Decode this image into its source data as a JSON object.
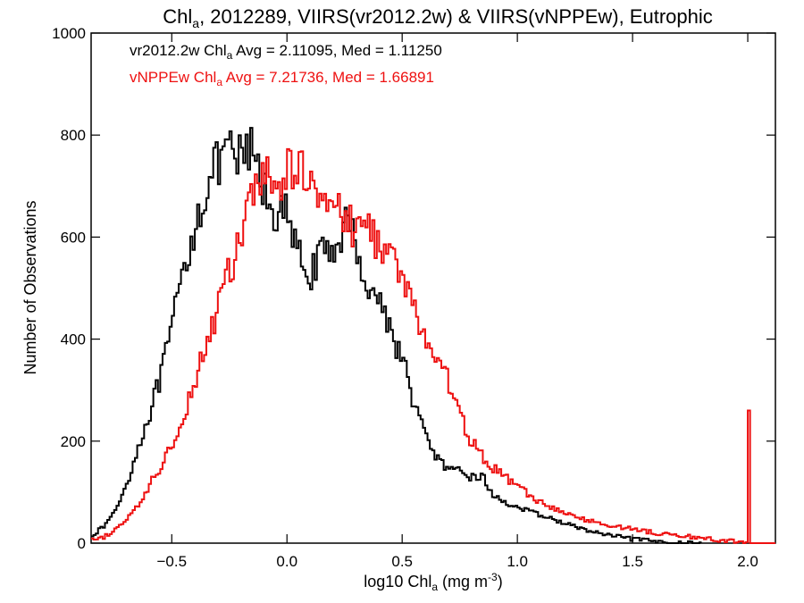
{
  "chart_data": {
    "type": "line",
    "title_main": "Chl",
    "title_sub": "a",
    "title_rest": ", 2012289, VIIRS(vr2012.2w) & VIIRS(vNPPEw), Eutrophic",
    "xlabel_pre": "log10 Chl",
    "xlabel_sub": "a",
    "xlabel_post": " (mg m",
    "xlabel_sup": "-3",
    "xlabel_end": ")",
    "ylabel": "Number of Observations",
    "xlim": [
      -0.85,
      2.12
    ],
    "ylim": [
      0,
      1000
    ],
    "xticks": [
      -0.5,
      0.0,
      0.5,
      1.0,
      1.5,
      2.0
    ],
    "xtick_labels": [
      "−0.5",
      "0.0",
      "0.5",
      "1.0",
      "1.5",
      "2.0"
    ],
    "yticks": [
      0,
      200,
      400,
      600,
      800,
      1000
    ],
    "ytick_labels": [
      "0",
      "200",
      "400",
      "600",
      "800",
      "1000"
    ],
    "stats": [
      {
        "pre": "vr2012.2w Chl",
        "sub": "a",
        "post": " Avg = 2.11095, Med = 1.11250",
        "color": "#000000"
      },
      {
        "pre": "vNPPEw Chl",
        "sub": "a",
        "post": " Avg = 7.21736, Med = 1.66891",
        "color": "#ee1111"
      }
    ],
    "series": [
      {
        "color": "#000000",
        "x": [
          -0.85,
          -0.8,
          -0.75,
          -0.7,
          -0.65,
          -0.6,
          -0.55,
          -0.5,
          -0.45,
          -0.4,
          -0.35,
          -0.3,
          -0.25,
          -0.2,
          -0.15,
          -0.1,
          -0.05,
          0.0,
          0.05,
          0.1,
          0.15,
          0.2,
          0.25,
          0.3,
          0.35,
          0.4,
          0.45,
          0.5,
          0.55,
          0.6,
          0.65,
          0.7,
          0.75,
          0.8,
          0.85,
          0.9,
          0.95,
          1.0,
          1.1,
          1.2,
          1.3,
          1.4,
          1.5,
          1.6,
          1.7,
          1.8
        ],
        "y": [
          15,
          30,
          60,
          110,
          180,
          250,
          320,
          420,
          530,
          620,
          700,
          740,
          760,
          750,
          770,
          690,
          650,
          640,
          560,
          530,
          560,
          570,
          630,
          590,
          500,
          480,
          420,
          360,
          280,
          210,
          170,
          140,
          140,
          130,
          130,
          90,
          80,
          70,
          55,
          40,
          25,
          15,
          8,
          3,
          0,
          0
        ]
      },
      {
        "color": "#ee1111",
        "x": [
          -0.85,
          -0.8,
          -0.75,
          -0.7,
          -0.65,
          -0.6,
          -0.55,
          -0.5,
          -0.45,
          -0.4,
          -0.35,
          -0.3,
          -0.25,
          -0.2,
          -0.15,
          -0.1,
          -0.05,
          0.0,
          0.05,
          0.1,
          0.15,
          0.2,
          0.25,
          0.3,
          0.35,
          0.4,
          0.45,
          0.5,
          0.55,
          0.6,
          0.65,
          0.7,
          0.75,
          0.8,
          0.85,
          0.9,
          0.95,
          1.0,
          1.1,
          1.2,
          1.3,
          1.4,
          1.5,
          1.6,
          1.7,
          1.8,
          1.9,
          1.95,
          1.99,
          2.0,
          2.01,
          2.12
        ],
        "y": [
          5,
          10,
          25,
          45,
          70,
          110,
          150,
          190,
          250,
          320,
          390,
          460,
          530,
          600,
          680,
          720,
          700,
          720,
          740,
          720,
          700,
          660,
          630,
          620,
          620,
          590,
          560,
          520,
          460,
          400,
          360,
          320,
          250,
          200,
          170,
          145,
          130,
          110,
          80,
          60,
          45,
          35,
          28,
          20,
          15,
          10,
          5,
          3,
          2,
          260,
          0,
          0
        ]
      }
    ]
  }
}
